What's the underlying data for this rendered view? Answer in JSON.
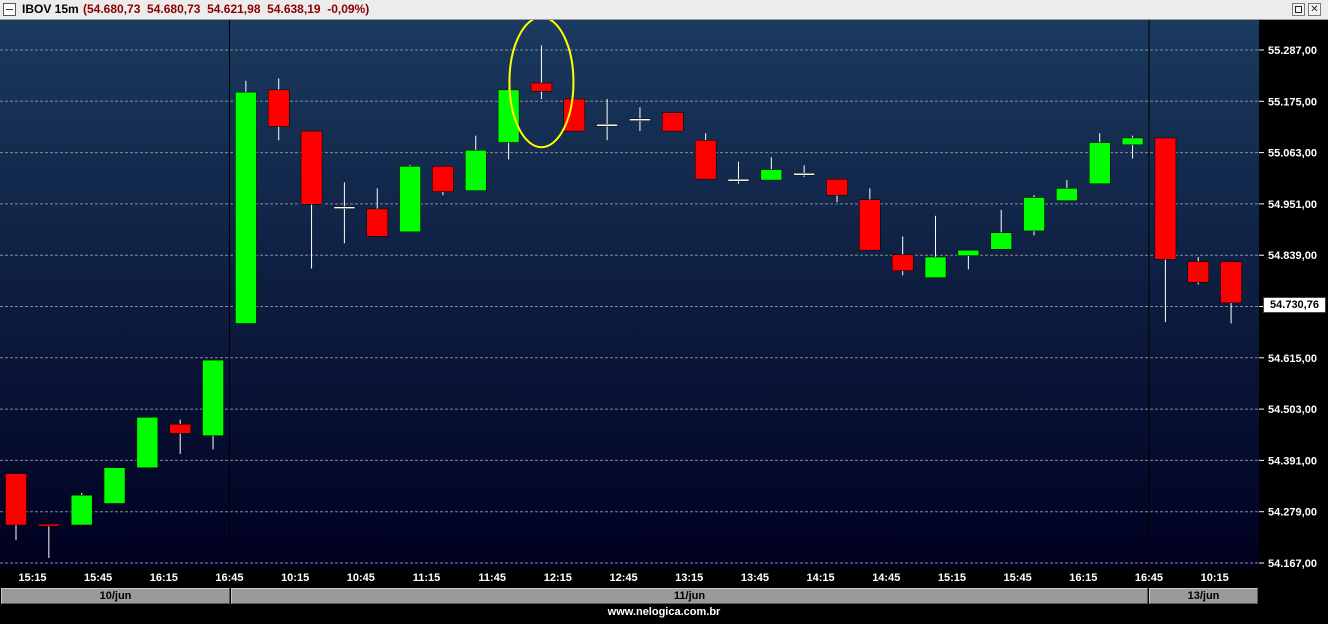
{
  "window": {
    "title": "IBOV 15m",
    "quote": "(54.680,73  54.680,73  54.621,98  54.638,19  -0,09%)",
    "icon": "chart-icon",
    "buttons": [
      "restore-icon",
      "close-icon"
    ]
  },
  "footer": {
    "url": "www.nelogica.com.br"
  },
  "colors": {
    "background_top": "#1a3a5f",
    "background_bottom": "#000020",
    "up": "#00ff00",
    "down": "#ff0000",
    "wick": "#ffffff",
    "grid": "#8a8a8a",
    "highlight": "#ffff00"
  },
  "chart_data": {
    "type": "candlestick",
    "title": "IBOV 15m",
    "ylim": [
      54167,
      55287
    ],
    "yticks": [
      "55.287,00",
      "55.175,00",
      "55.063,00",
      "54.951,00",
      "54.839,00",
      "54.730,76",
      "54.615,00",
      "54.503,00",
      "54.391,00",
      "54.279,00",
      "54.167,00"
    ],
    "ytick_values": [
      55287,
      55175,
      55063,
      54951,
      54839,
      54727,
      54615,
      54503,
      54391,
      54279,
      54167
    ],
    "current_price": 54730.76,
    "current_price_label": "54.730,76",
    "grid": true,
    "x_tick_labels": [
      "15:15",
      "15:45",
      "16:15",
      "16:45",
      "10:15",
      "10:45",
      "11:15",
      "11:45",
      "12:15",
      "12:45",
      "13:15",
      "13:45",
      "14:15",
      "14:45",
      "15:15",
      "15:45",
      "16:15",
      "16:45",
      "10:15"
    ],
    "date_labels": [
      "10/jun",
      "11/jun",
      "13/jun"
    ],
    "session_breaks_after_index": [
      6,
      34
    ],
    "highlight_candle_index": 16,
    "candles": [
      {
        "o": 54362,
        "h": 54362,
        "l": 54217,
        "c": 54250
      },
      {
        "o": 54252,
        "h": 54252,
        "l": 54178,
        "c": 54250
      },
      {
        "o": 54250,
        "h": 54320,
        "l": 54250,
        "c": 54315
      },
      {
        "o": 54297,
        "h": 54375,
        "l": 54297,
        "c": 54375
      },
      {
        "o": 54375,
        "h": 54485,
        "l": 54375,
        "c": 54485
      },
      {
        "o": 54470,
        "h": 54480,
        "l": 54405,
        "c": 54450
      },
      {
        "o": 54445,
        "h": 54610,
        "l": 54415,
        "c": 54610
      },
      {
        "o": 54690,
        "h": 55220,
        "l": 54690,
        "c": 55195
      },
      {
        "o": 55200,
        "h": 55225,
        "l": 55090,
        "c": 55120
      },
      {
        "o": 55110,
        "h": 55110,
        "l": 54810,
        "c": 54950
      },
      {
        "o": 54945,
        "h": 54998,
        "l": 54865,
        "c": 54945
      },
      {
        "o": 54940,
        "h": 54985,
        "l": 54880,
        "c": 54880
      },
      {
        "o": 54890,
        "h": 55036,
        "l": 54890,
        "c": 55033
      },
      {
        "o": 55033,
        "h": 55033,
        "l": 54970,
        "c": 54978
      },
      {
        "o": 54980,
        "h": 55100,
        "l": 54980,
        "c": 55068
      },
      {
        "o": 55085,
        "h": 55202,
        "l": 55048,
        "c": 55200
      },
      {
        "o": 55215,
        "h": 55297,
        "l": 55180,
        "c": 55197
      },
      {
        "o": 55180,
        "h": 55180,
        "l": 55110,
        "c": 55110
      },
      {
        "o": 55125,
        "h": 55180,
        "l": 55090,
        "c": 55125
      },
      {
        "o": 55137,
        "h": 55162,
        "l": 55110,
        "c": 55137
      },
      {
        "o": 55150,
        "h": 55150,
        "l": 55110,
        "c": 55110
      },
      {
        "o": 55090,
        "h": 55105,
        "l": 55005,
        "c": 55005
      },
      {
        "o": 55005,
        "h": 55043,
        "l": 54995,
        "c": 55005
      },
      {
        "o": 55003,
        "h": 55053,
        "l": 55003,
        "c": 55026
      },
      {
        "o": 55018,
        "h": 55035,
        "l": 55010,
        "c": 55018
      },
      {
        "o": 55005,
        "h": 55005,
        "l": 54955,
        "c": 54970
      },
      {
        "o": 54960,
        "h": 54985,
        "l": 54850,
        "c": 54850
      },
      {
        "o": 54840,
        "h": 54880,
        "l": 54795,
        "c": 54805
      },
      {
        "o": 54790,
        "h": 54925,
        "l": 54790,
        "c": 54835
      },
      {
        "o": 54838,
        "h": 54850,
        "l": 54808,
        "c": 54850
      },
      {
        "o": 54852,
        "h": 54938,
        "l": 54852,
        "c": 54888
      },
      {
        "o": 54892,
        "h": 54970,
        "l": 54882,
        "c": 54965
      },
      {
        "o": 54958,
        "h": 55003,
        "l": 54958,
        "c": 54985
      },
      {
        "o": 54995,
        "h": 55105,
        "l": 54995,
        "c": 55085
      },
      {
        "o": 55080,
        "h": 55100,
        "l": 55050,
        "c": 55095
      },
      {
        "o": 55095,
        "h": 55095,
        "l": 54693,
        "c": 54830
      },
      {
        "o": 54825,
        "h": 54835,
        "l": 54775,
        "c": 54780
      },
      {
        "o": 54825,
        "h": 54825,
        "l": 54690,
        "c": 54735
      }
    ]
  }
}
